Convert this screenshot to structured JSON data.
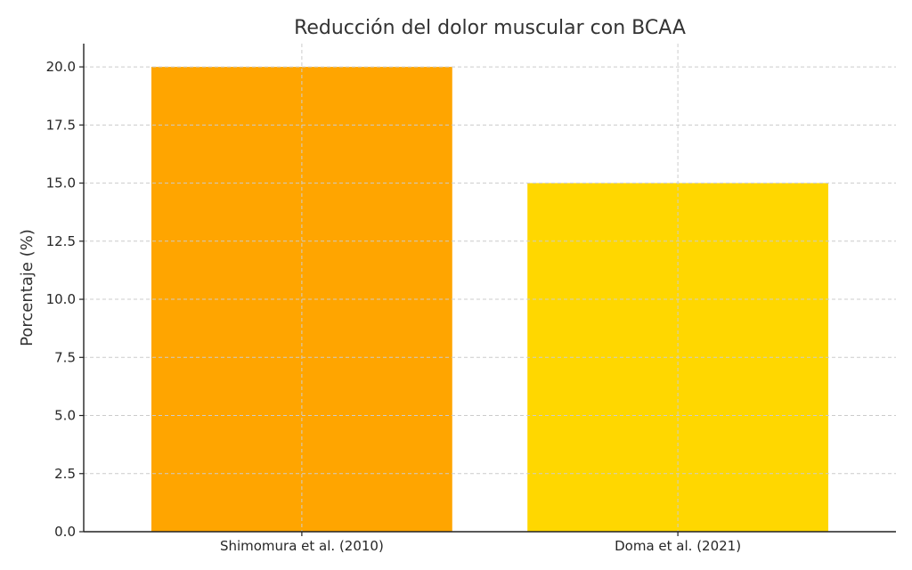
{
  "chart_data": {
    "type": "bar",
    "title": "Reducción del dolor muscular con BCAA",
    "xlabel": "",
    "ylabel": "Porcentaje (%)",
    "categories": [
      "Shimomura et al. (2010)",
      "Doma et al. (2021)"
    ],
    "values": [
      20,
      15
    ],
    "colors": [
      "#FFA500",
      "#FFD700"
    ],
    "ylim": [
      0,
      21
    ],
    "yticks": [
      0.0,
      2.5,
      5.0,
      7.5,
      10.0,
      12.5,
      15.0,
      17.5,
      20.0
    ],
    "ytick_labels": [
      "0.0",
      "2.5",
      "5.0",
      "7.5",
      "10.0",
      "12.5",
      "15.0",
      "17.5",
      "20.0"
    ],
    "grid": true,
    "legend": false
  }
}
